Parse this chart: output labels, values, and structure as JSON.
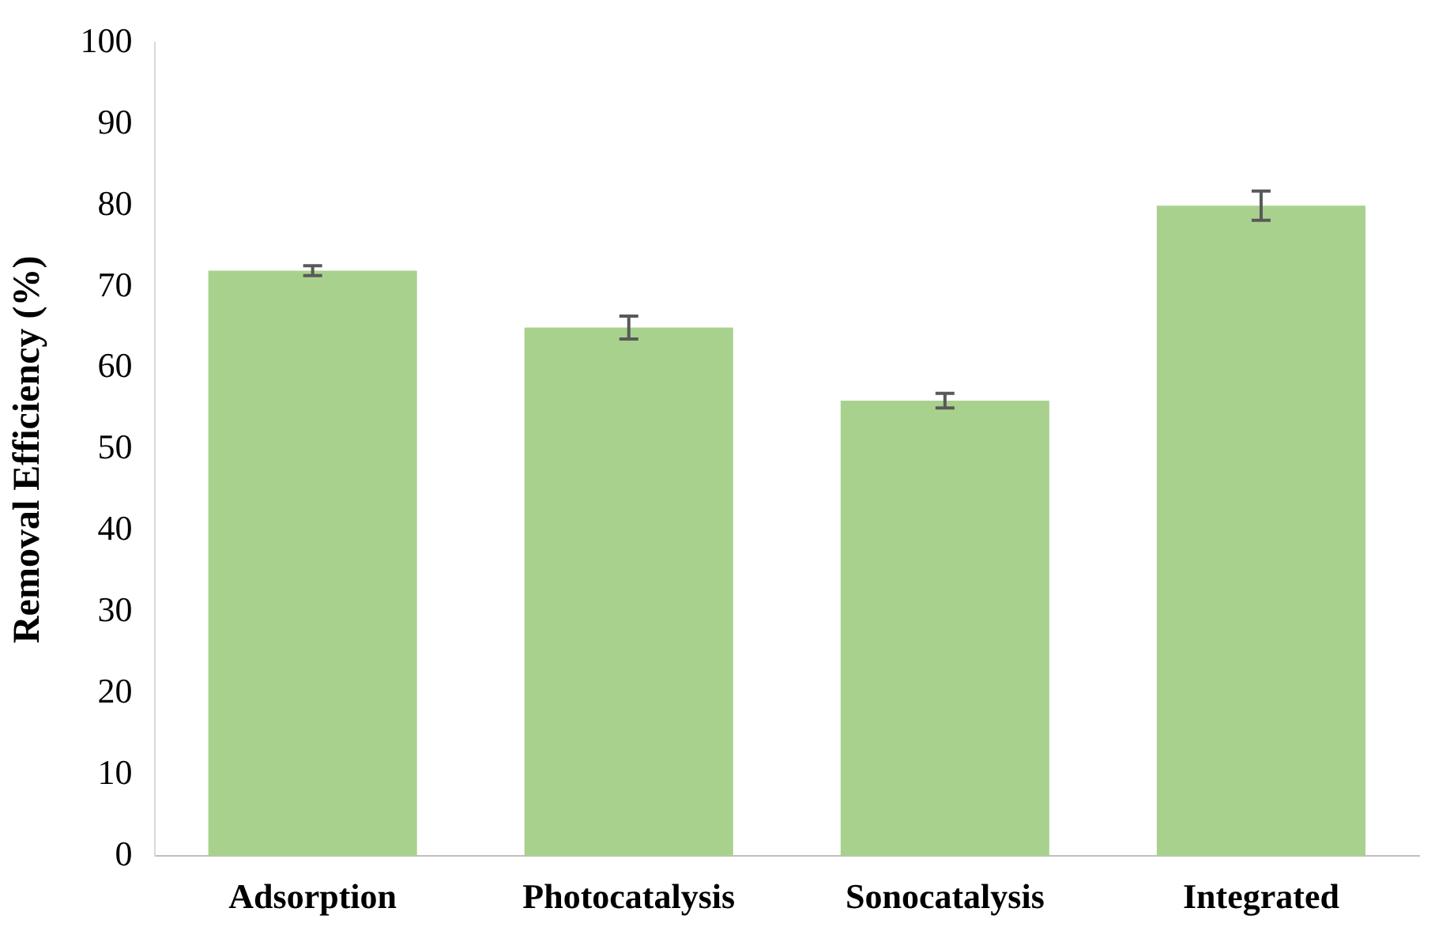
{
  "chart_data": {
    "type": "bar",
    "ylabel": "Removal Efficiency (%)",
    "categories": [
      "Adsorption",
      "Photocatalysis",
      "Sonocatalysis",
      "Integrated"
    ],
    "values": [
      72,
      65,
      56,
      80
    ],
    "errors": [
      0.6,
      1.4,
      0.9,
      1.8
    ],
    "color": "#a9d18e",
    "ylim": [
      0,
      100
    ],
    "yticks": [
      0,
      10,
      20,
      30,
      40,
      50,
      60,
      70,
      80,
      90,
      100
    ],
    "grid": false,
    "legend": false
  }
}
